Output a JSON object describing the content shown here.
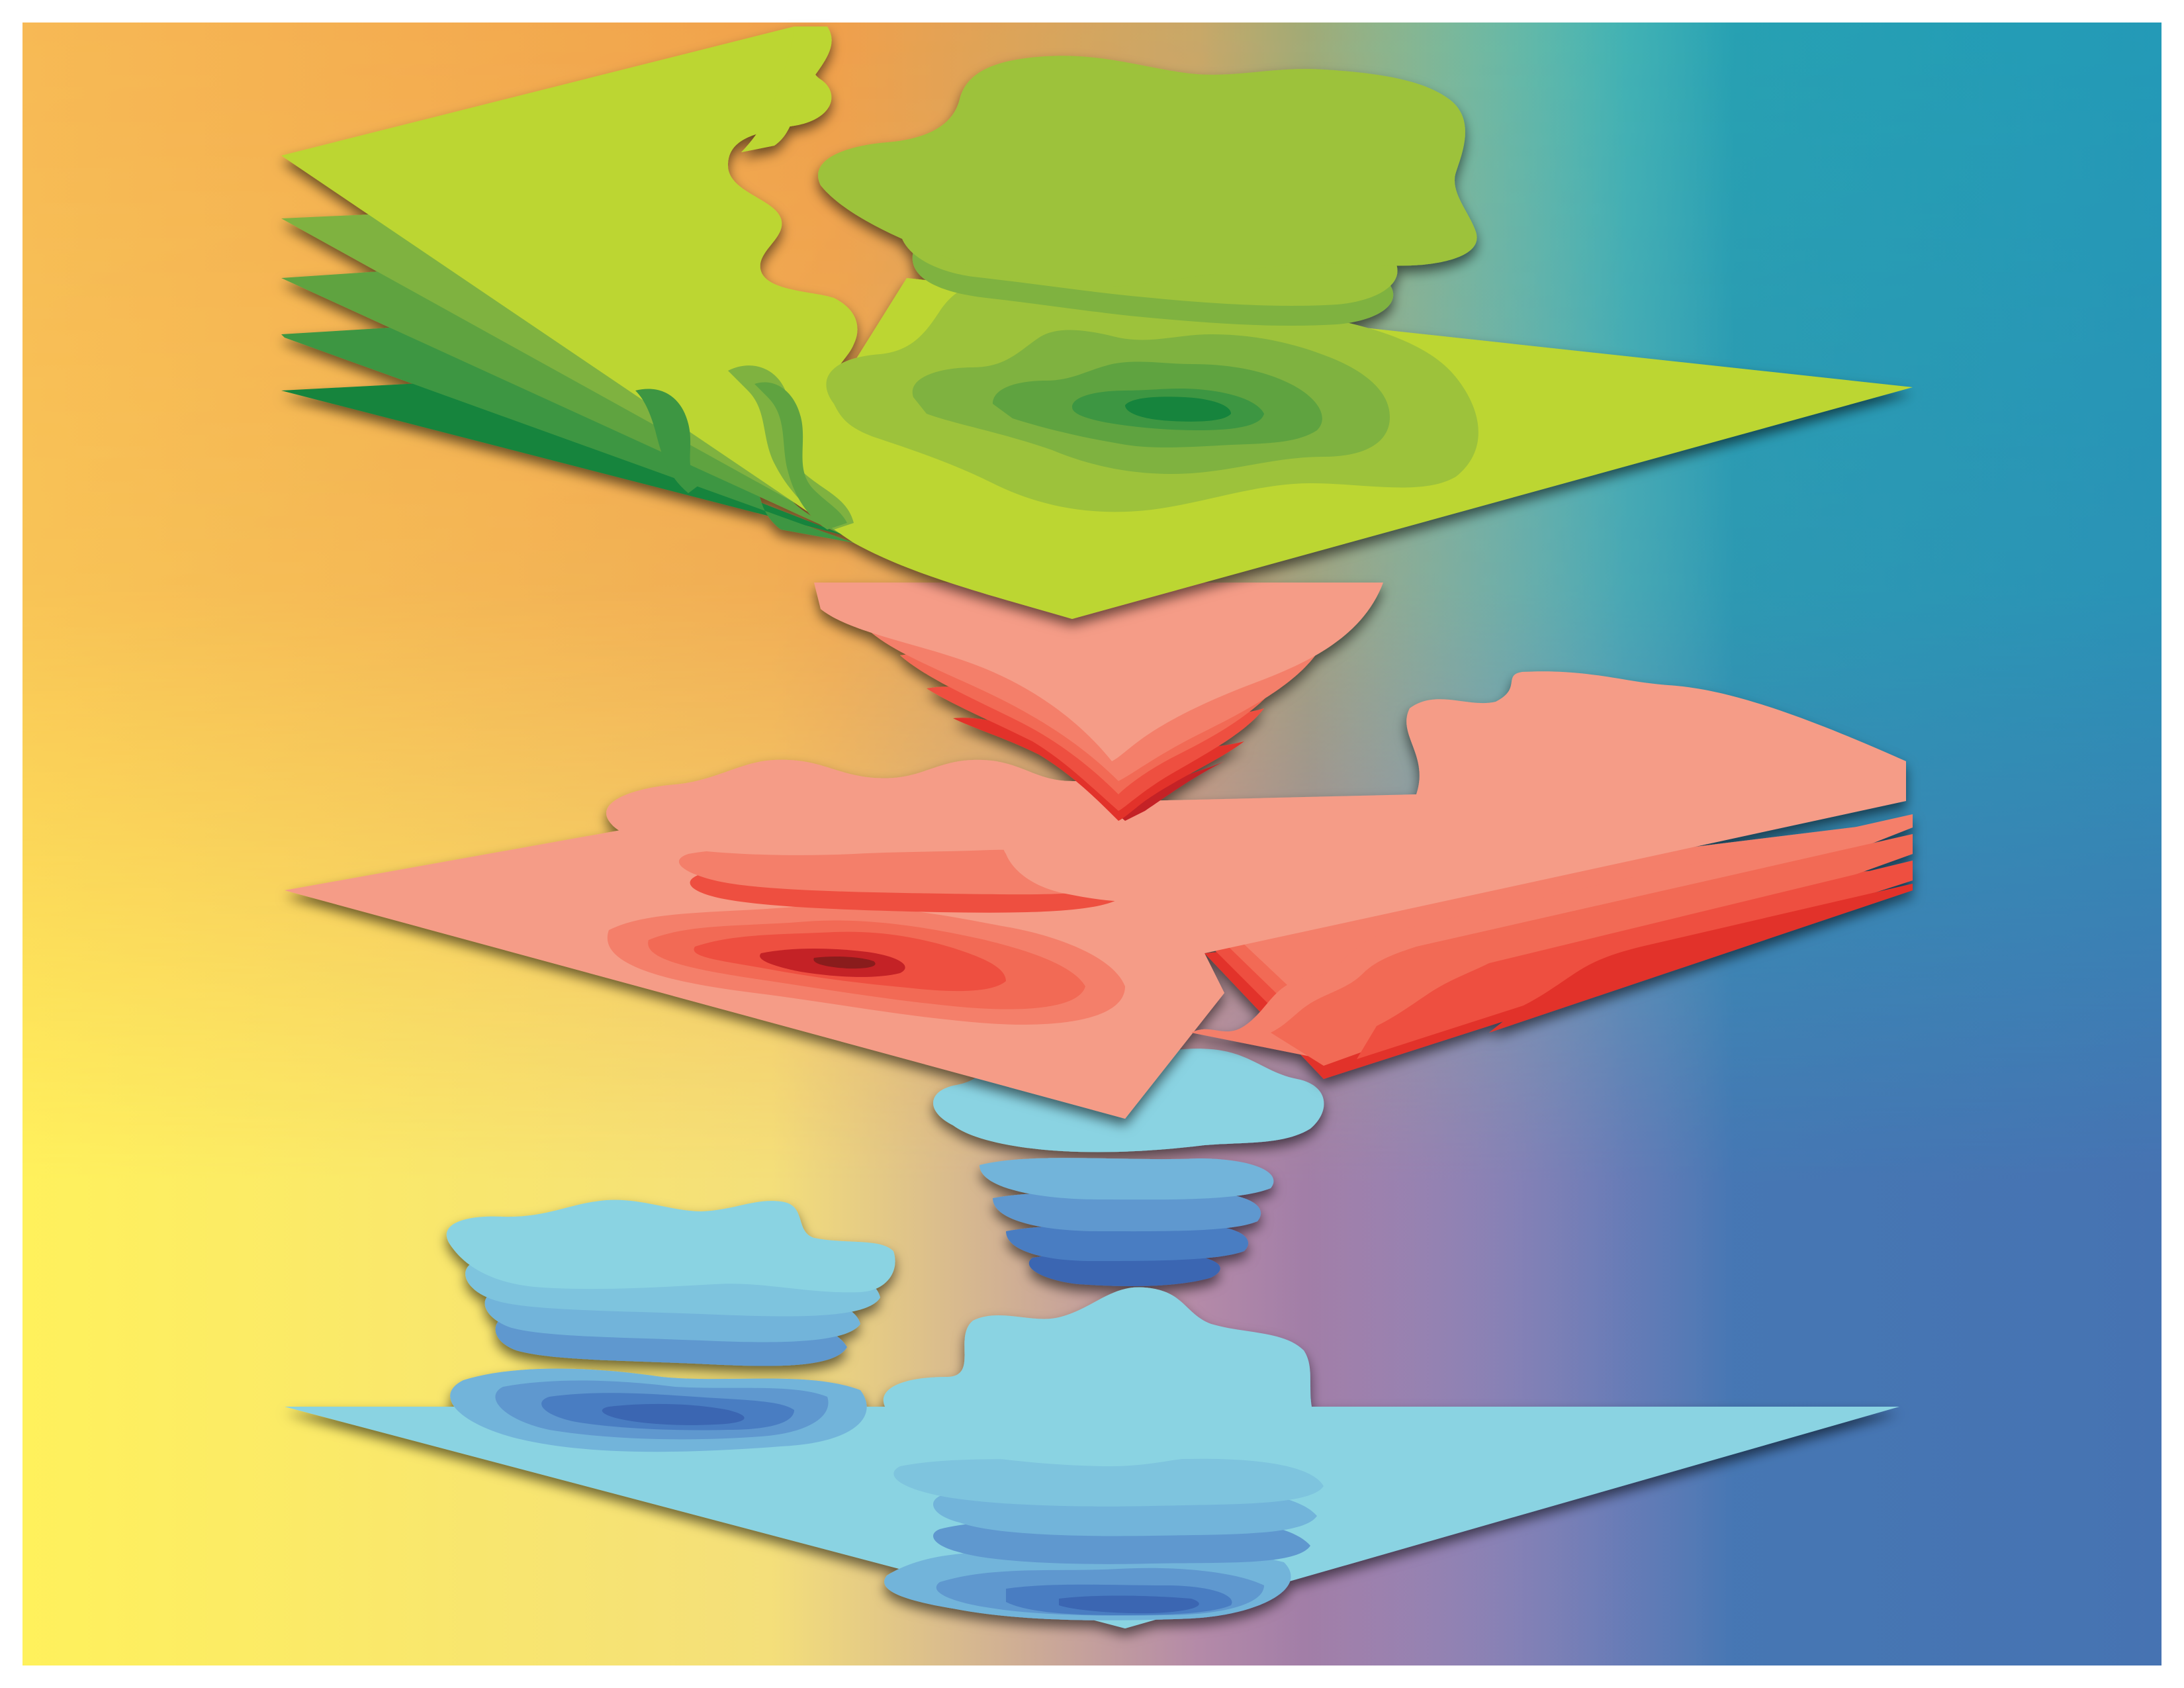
{
  "artwork": {
    "description_visible_text": "",
    "background_colors": {
      "top_left": "#f7b955",
      "top_right": "#00b9aa",
      "bottom_left": "#fff15c",
      "bottom_right": "#58569e",
      "mid_orange": "#f0a04b",
      "mid_purple": "#7a5aa3"
    },
    "layers": [
      {
        "name": "green-layer",
        "base_color": "#bcd630",
        "contour_colors": [
          "#bcd630",
          "#9dc23a",
          "#7fb23f",
          "#5fa341",
          "#3e9642",
          "#14843c"
        ]
      },
      {
        "name": "red-layer",
        "base_color": "#f59c87",
        "contour_colors": [
          "#f59c87",
          "#f47f6a",
          "#f26a55",
          "#ee5040",
          "#e23329",
          "#c42027"
        ]
      },
      {
        "name": "blue-layer",
        "base_color": "#8ad3e2",
        "contour_colors": [
          "#8ad3e2",
          "#72b4da",
          "#5f98cf",
          "#4a7dc2",
          "#3a66b2",
          "#2c4f9a"
        ]
      }
    ]
  }
}
